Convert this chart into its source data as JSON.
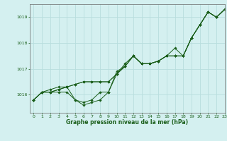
{
  "title": "Graphe pression niveau de la mer (hPa)",
  "background_color": "#d4f0f0",
  "grid_color": "#b8dede",
  "line_color": "#1a5e1a",
  "marker_color": "#1a5e1a",
  "xlim": [
    -0.5,
    23
  ],
  "ylim": [
    1015.3,
    1019.5
  ],
  "yticks": [
    1016,
    1017,
    1018,
    1019
  ],
  "xticks": [
    0,
    1,
    2,
    3,
    4,
    5,
    6,
    7,
    8,
    9,
    10,
    11,
    12,
    13,
    14,
    15,
    16,
    17,
    18,
    19,
    20,
    21,
    22,
    23
  ],
  "series": [
    [
      1015.8,
      1016.1,
      1016.1,
      1016.1,
      1016.1,
      1015.8,
      1015.6,
      1015.7,
      1015.8,
      1016.1,
      1016.8,
      1017.1,
      1017.5,
      1017.2,
      1017.2,
      1017.3,
      1017.5,
      1017.5,
      1017.5,
      1018.2,
      1018.7,
      1019.2,
      1019.0,
      1019.3
    ],
    [
      1015.8,
      1016.1,
      1016.1,
      1016.2,
      1016.3,
      1016.4,
      1016.5,
      1016.5,
      1016.5,
      1016.5,
      1016.8,
      1017.1,
      1017.5,
      1017.2,
      1017.2,
      1017.3,
      1017.5,
      1017.5,
      1017.5,
      1018.2,
      1018.7,
      1019.2,
      1019.0,
      1019.3
    ],
    [
      1015.8,
      1016.1,
      1016.1,
      1016.2,
      1016.3,
      1016.4,
      1016.5,
      1016.5,
      1016.5,
      1016.5,
      1016.8,
      1017.2,
      1017.5,
      1017.2,
      1017.2,
      1017.3,
      1017.5,
      1017.8,
      1017.5,
      1018.2,
      1018.7,
      1019.2,
      1019.0,
      1019.3
    ],
    [
      1015.8,
      1016.1,
      1016.2,
      1016.3,
      1016.3,
      1015.8,
      1015.7,
      1015.8,
      1016.1,
      1016.1,
      1016.9,
      1017.1,
      1017.5,
      1017.2,
      1017.2,
      1017.3,
      1017.5,
      1017.5,
      1017.5,
      1018.2,
      1018.7,
      1019.2,
      1019.0,
      1019.3
    ]
  ]
}
